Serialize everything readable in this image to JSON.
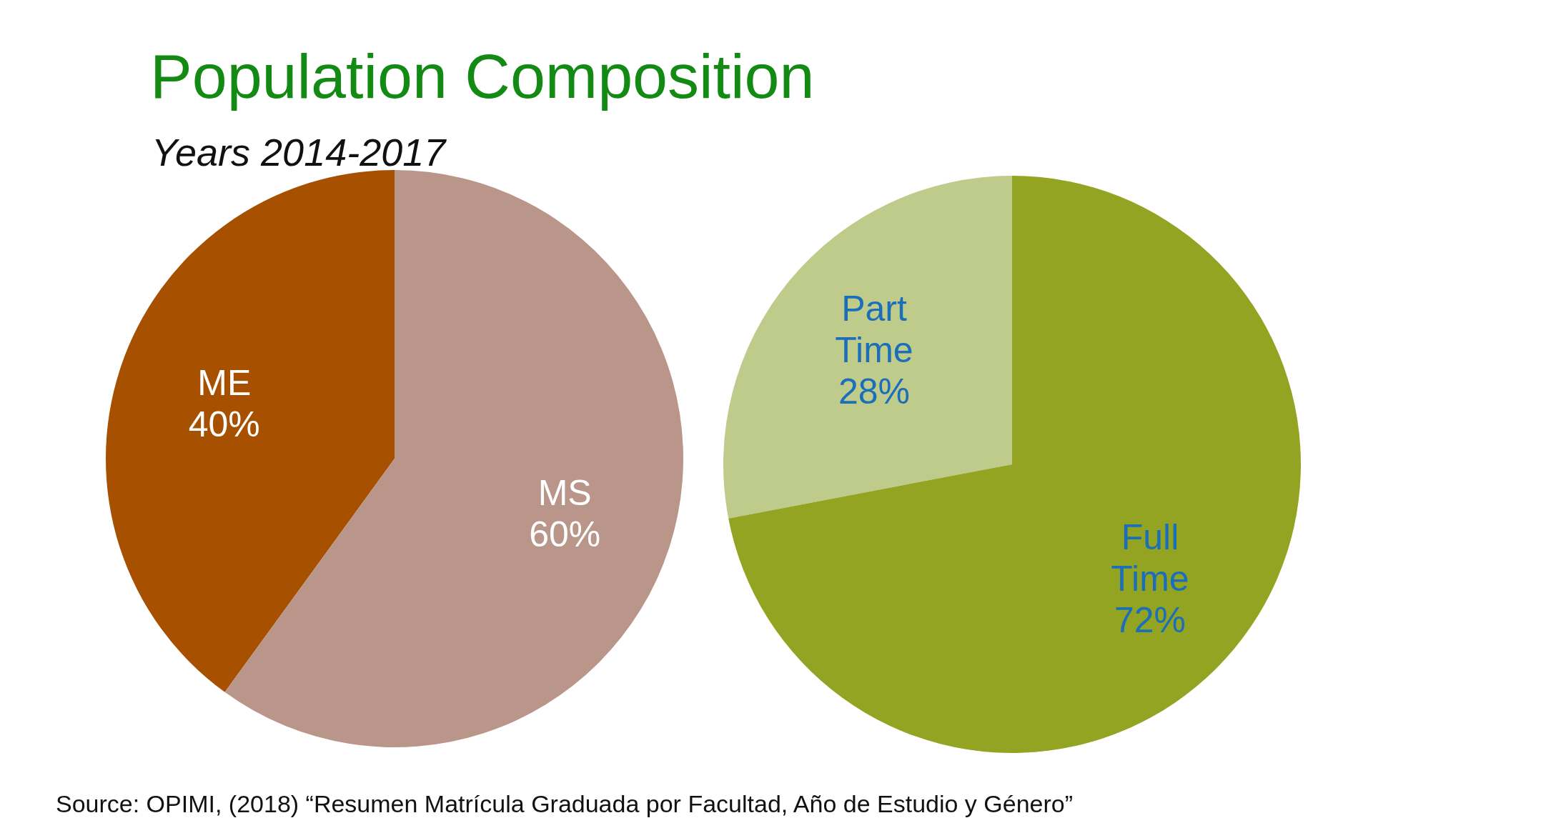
{
  "chart_data": [
    {
      "type": "pie",
      "title": "Population Composition",
      "subtitle": "Years 2014-2017",
      "annotations": [
        "Source: OPIMI, (2018) “Resumen Matrícula Graduada por Facultad, Año de Estudio y Género”"
      ],
      "categories": [
        "ME",
        "MS"
      ],
      "values": [
        40,
        60
      ],
      "value_labels": [
        "40%",
        "60%"
      ],
      "colors": [
        "#a65000",
        "#b9958a"
      ]
    },
    {
      "type": "pie",
      "categories": [
        "Part Time",
        "Full Time"
      ],
      "values": [
        28,
        72
      ],
      "value_labels": [
        "28%",
        "72%"
      ],
      "colors": [
        "#bfcb8a",
        "#93a322"
      ]
    }
  ]
}
